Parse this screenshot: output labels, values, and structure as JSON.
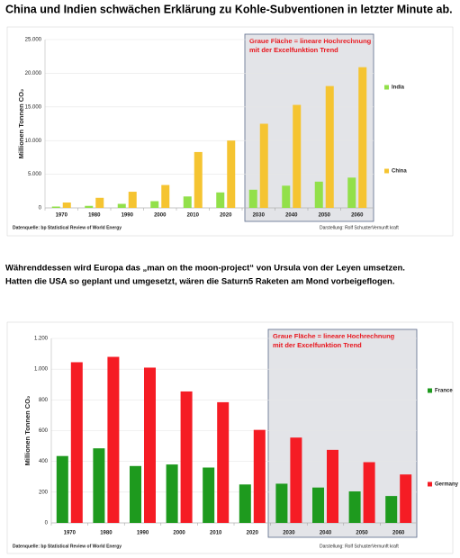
{
  "title": "China und Indien schwächen Erklärung zu Kohle-Subventionen in letzter Minute ab.",
  "text": [
    "Währenddessen wird Europa das „man on the moon-project“ von Ursula von der Leyen umsetzen.",
    "Hatten die USA so geplant und umgesetzt, wären die Saturn5 Raketen am Mond vorbeigeflogen."
  ],
  "chart_data": [
    {
      "type": "bar",
      "y_label": "Millionen Tonnen CO₂",
      "annotation": [
        "Graue Fläche = lineare Hochrechnung",
        "mit der Excelfunktion Trend"
      ],
      "categories": [
        "1970",
        "1980",
        "1990",
        "2000",
        "2010",
        "2020",
        "2030",
        "2040",
        "2050",
        "2060"
      ],
      "series": [
        {
          "name": "India",
          "color": "#92e04a",
          "values": [
            200,
            300,
            600,
            1000,
            1700,
            2300,
            2700,
            3300,
            3900,
            4500
          ]
        },
        {
          "name": "China",
          "color": "#f5c431",
          "values": [
            800,
            1500,
            2400,
            3400,
            8300,
            10000,
            12500,
            15300,
            18100,
            20900
          ]
        }
      ],
      "ylim": [
        0,
        25000
      ],
      "yticks": [
        0,
        {
          "value": 5000,
          "label": "5.000"
        },
        {
          "value": 10000,
          "label": "10.000"
        },
        {
          "value": 15000,
          "label": "15.000"
        },
        {
          "value": 20000,
          "label": "20.000"
        },
        {
          "value": 25000,
          "label": "25.000"
        }
      ],
      "grid": true,
      "legend": "right",
      "source": "Datenquelle: bp Statistical Review of World Energy",
      "credit": "Darstellung: Rolf Schuster",
      "brand": [
        "Vernunft",
        "kraft"
      ]
    },
    {
      "type": "bar",
      "y_label": "Millionen Tonnen CO₂",
      "annotation": [
        "Graue Fläche = lineare Hochrechnung",
        "mit der Excelfunktion Trend"
      ],
      "categories": [
        "1970",
        "1980",
        "1990",
        "2000",
        "2010",
        "2020",
        "2030",
        "2040",
        "2050",
        "2060"
      ],
      "series": [
        {
          "name": "France",
          "color": "#1e9a1e",
          "values": [
            435,
            485,
            370,
            380,
            360,
            250,
            255,
            230,
            205,
            175
          ]
        },
        {
          "name": "Germany",
          "color": "#f51c24",
          "values": [
            1045,
            1080,
            1010,
            855,
            785,
            605,
            555,
            475,
            395,
            315
          ]
        }
      ],
      "ylim": [
        0,
        1200
      ],
      "yticks": [
        0,
        200,
        400,
        600,
        800,
        {
          "value": 1000,
          "label": "1.000"
        },
        {
          "value": 1200,
          "label": "1.200"
        }
      ],
      "grid": true,
      "legend": "right",
      "source": "Datenquelle: bp Statistical Review of World Energy",
      "credit": "Darstellung: Rolf Schuster",
      "brand": [
        "Vernunft",
        "kraft"
      ]
    }
  ]
}
